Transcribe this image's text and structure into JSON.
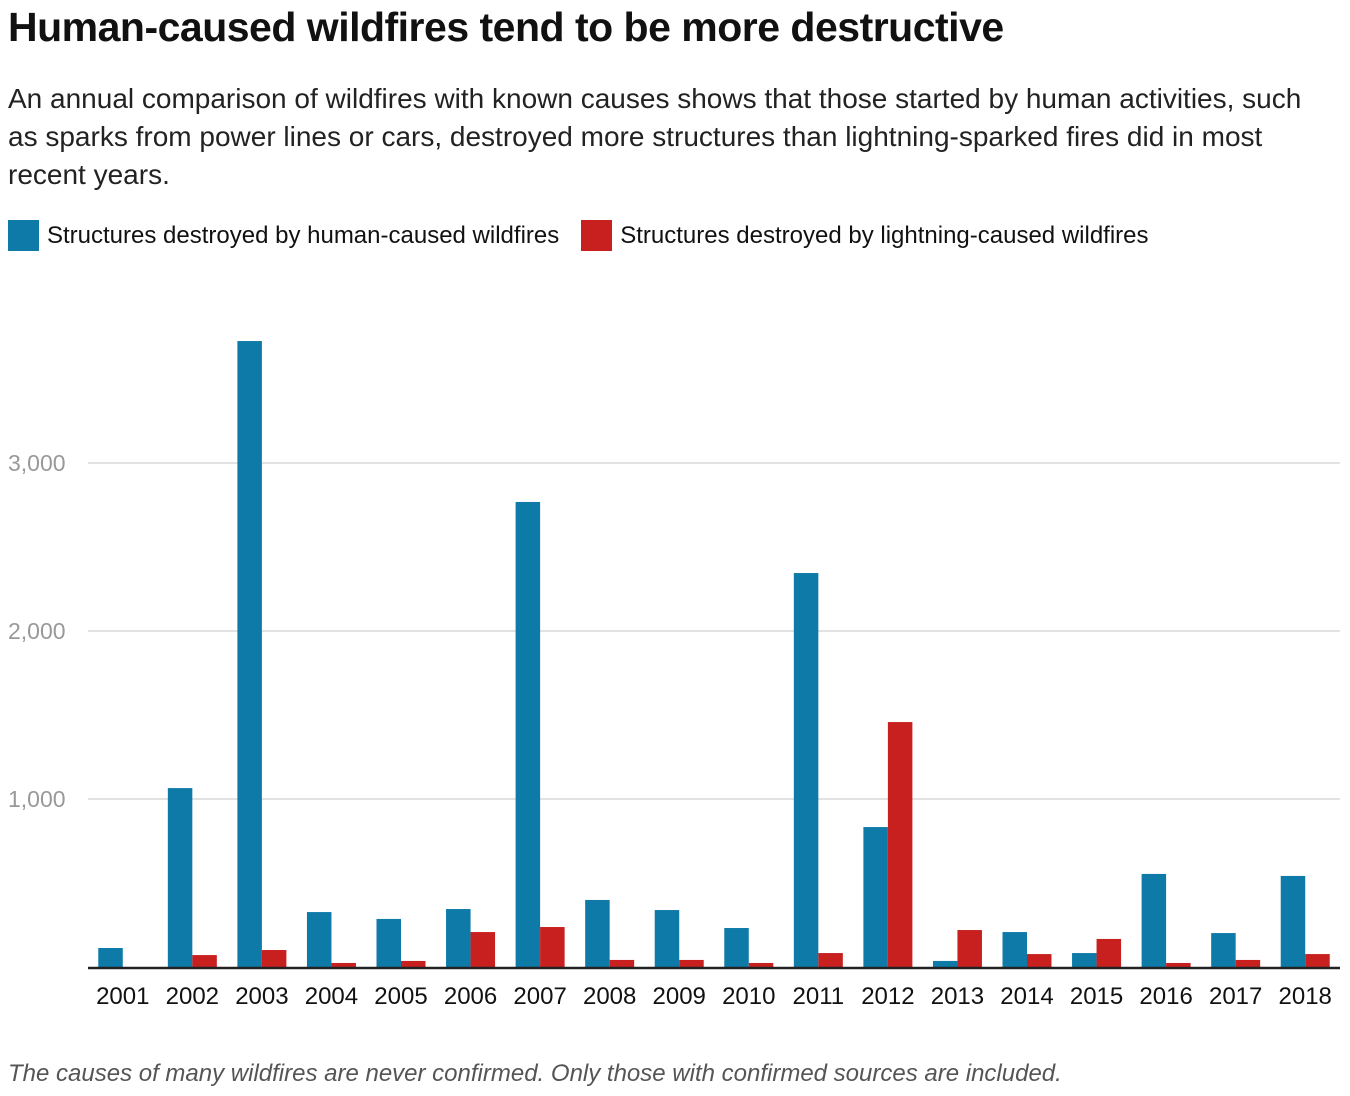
{
  "chart_data": {
    "type": "bar",
    "title": "Human-caused wildfires tend to be more destructive",
    "subtitle": "An annual comparison of wildfires with known causes shows that those started by human activities, such as sparks from power lines or cars, destroyed more structures than lightning-sparked fires did in most recent years.",
    "categories": [
      "2001",
      "2002",
      "2003",
      "2004",
      "2005",
      "2006",
      "2007",
      "2008",
      "2009",
      "2010",
      "2011",
      "2012",
      "2013",
      "2014",
      "2015",
      "2016",
      "2017",
      "2018"
    ],
    "series": [
      {
        "name": "Structures destroyed by human-caused wildfires",
        "color": "#0e7aa8",
        "values": [
          113,
          1065,
          3726,
          327,
          286,
          345,
          2768,
          399,
          339,
          232,
          2345,
          833,
          36,
          208,
          83,
          554,
          202,
          542
        ]
      },
      {
        "name": "Structures destroyed by lightning-caused wildfires",
        "color": "#c81f1f",
        "values": [
          0,
          71,
          101,
          24,
          36,
          208,
          238,
          42,
          42,
          24,
          83,
          1458,
          220,
          77,
          167,
          24,
          42,
          77
        ]
      }
    ],
    "yticks": [
      1000,
      2000,
      3000
    ],
    "ytick_labels": [
      "1,000",
      "2,000",
      "3,000"
    ],
    "ylim": [
      0,
      3800
    ],
    "grid": true,
    "legend_position": "top-left",
    "xlabel": "",
    "ylabel": "",
    "note": "The causes of many wildfires are never confirmed. Only those with confirmed sources are included."
  }
}
